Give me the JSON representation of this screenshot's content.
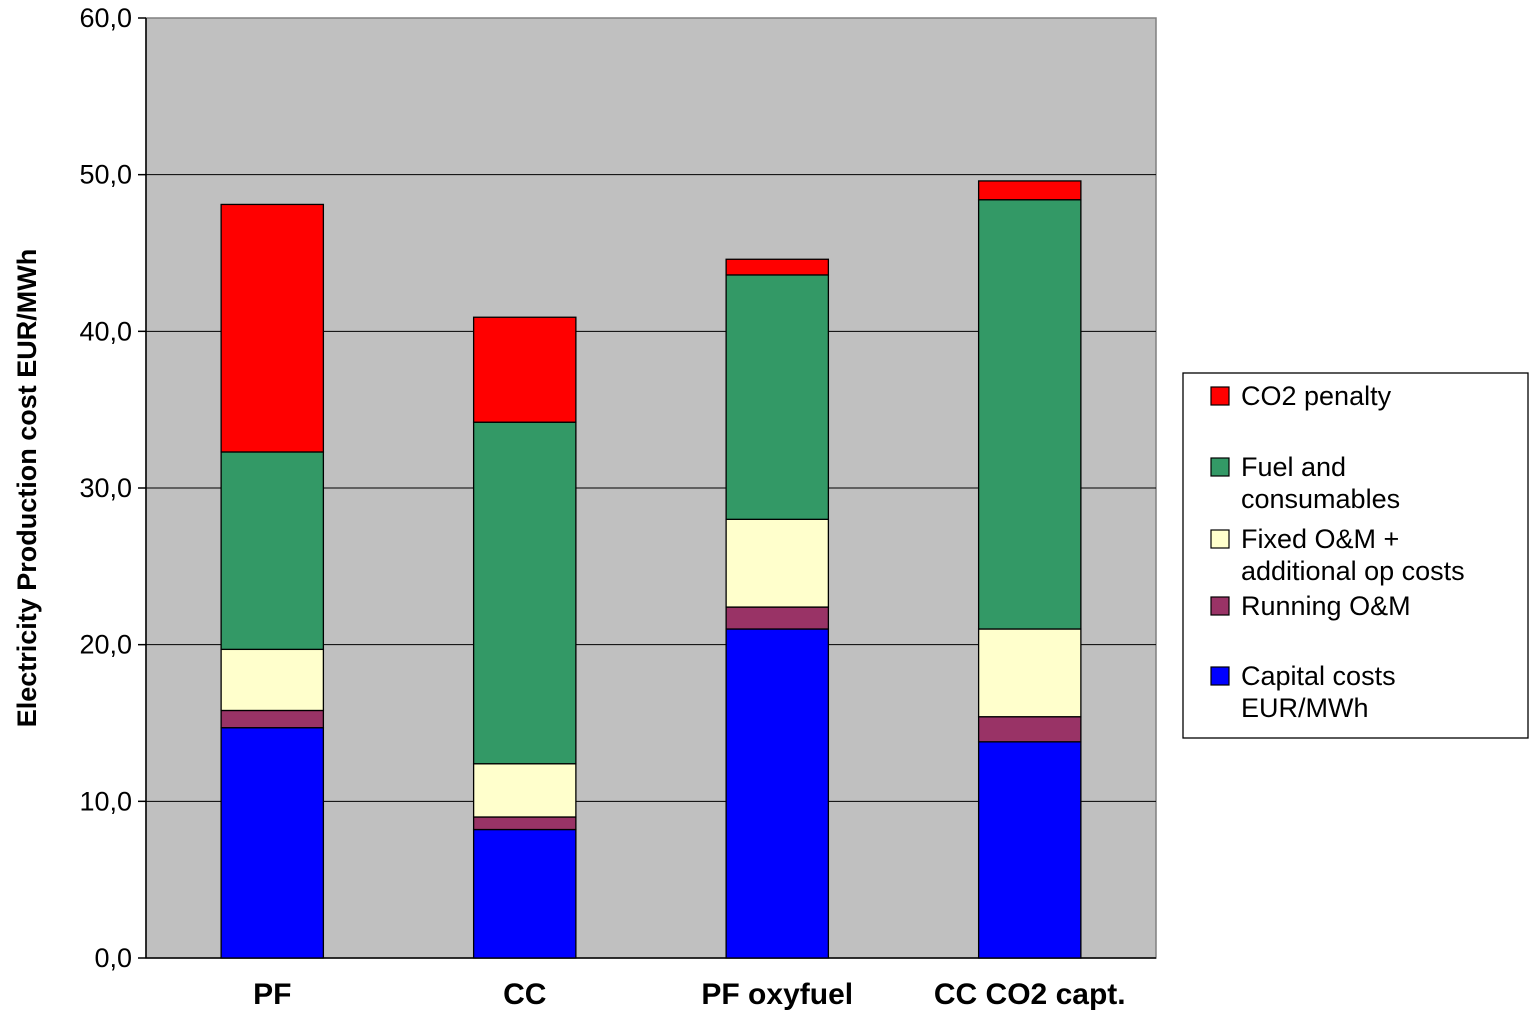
{
  "chart_data": {
    "type": "bar",
    "stacked": true,
    "title": "",
    "xlabel": "",
    "ylabel": "Electricity Production cost EUR/MWh",
    "ylim": [
      0,
      60
    ],
    "y_ticks": [
      "0,0",
      "10,0",
      "20,0",
      "30,0",
      "40,0",
      "50,0",
      "60,0"
    ],
    "grid": true,
    "legend_position": "right",
    "plot_background": "#c0c0c0",
    "categories": [
      "PF",
      "CC",
      "PF oxyfuel",
      "CC CO2 capt."
    ],
    "series": [
      {
        "name": "Capital costs EUR/MWh",
        "legend_lines": [
          "Capital costs",
          "EUR/MWh"
        ],
        "color": "#0000ff",
        "values": [
          14.7,
          8.2,
          21.0,
          13.8
        ]
      },
      {
        "name": "Running O&M",
        "legend_lines": [
          "Running O&M"
        ],
        "color": "#993366",
        "values": [
          1.1,
          0.8,
          1.4,
          1.6
        ]
      },
      {
        "name": "Fixed O&M + additional op costs",
        "legend_lines": [
          "Fixed O&M +",
          "additional op costs"
        ],
        "color": "#ffffcc",
        "values": [
          3.9,
          3.4,
          5.6,
          5.6
        ]
      },
      {
        "name": "Fuel and consumables",
        "legend_lines": [
          "Fuel and",
          "consumables"
        ],
        "color": "#339966",
        "values": [
          12.6,
          21.8,
          15.6,
          27.4
        ]
      },
      {
        "name": "CO2 penalty",
        "legend_lines": [
          "CO2 penalty"
        ],
        "color": "#ff0000",
        "values": [
          15.8,
          6.7,
          1.0,
          1.2
        ]
      }
    ],
    "legend_order": [
      4,
      3,
      2,
      1,
      0
    ]
  }
}
